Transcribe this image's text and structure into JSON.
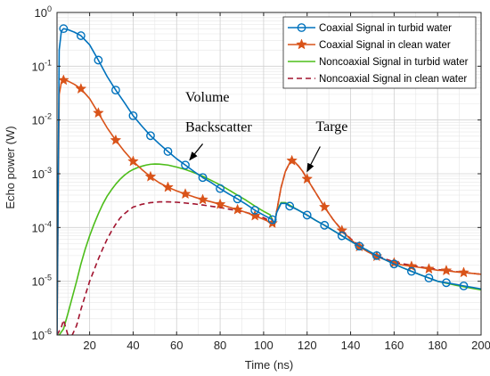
{
  "chart_data": {
    "type": "line",
    "title": "",
    "xlabel": "Time (ns)",
    "ylabel": "Echo power (W)",
    "xlim": [
      5,
      200
    ],
    "ylim": [
      1e-06,
      1
    ],
    "yscale": "log",
    "grid": true,
    "legend_position": "top-right",
    "x_ticks": [
      20,
      40,
      60,
      80,
      100,
      120,
      140,
      160,
      180,
      200
    ],
    "y_ticks": [
      {
        "value": 1e-06,
        "base": "10",
        "exp": "-6"
      },
      {
        "value": 1e-05,
        "base": "10",
        "exp": "-5"
      },
      {
        "value": 0.0001,
        "base": "10",
        "exp": "-4"
      },
      {
        "value": 0.001,
        "base": "10",
        "exp": "-3"
      },
      {
        "value": 0.01,
        "base": "10",
        "exp": "-2"
      },
      {
        "value": 0.1,
        "base": "10",
        "exp": "-1"
      },
      {
        "value": 1,
        "base": "10",
        "exp": "0"
      }
    ],
    "series": [
      {
        "name": "Coaxial Signal in turbid water",
        "color": "#0072bd",
        "line_style": "solid",
        "marker": "circle",
        "points": [
          [
            5,
            1e-06
          ],
          [
            6,
            0.2
          ],
          [
            7,
            0.45
          ],
          [
            8,
            0.5
          ],
          [
            10,
            0.48
          ],
          [
            13,
            0.43
          ],
          [
            16,
            0.37
          ],
          [
            20,
            0.25
          ],
          [
            24,
            0.13
          ],
          [
            28,
            0.065
          ],
          [
            32,
            0.036
          ],
          [
            36,
            0.021
          ],
          [
            40,
            0.012
          ],
          [
            44,
            0.0077
          ],
          [
            48,
            0.0051
          ],
          [
            52,
            0.0036
          ],
          [
            56,
            0.0026
          ],
          [
            60,
            0.0019
          ],
          [
            64,
            0.00145
          ],
          [
            68,
            0.0011
          ],
          [
            72,
            0.00085
          ],
          [
            76,
            0.00068
          ],
          [
            80,
            0.00053
          ],
          [
            84,
            0.00042
          ],
          [
            88,
            0.00034
          ],
          [
            92,
            0.00027
          ],
          [
            96,
            0.00021
          ],
          [
            100,
            0.00017
          ],
          [
            104,
            0.00014
          ],
          [
            105,
            0.00012
          ],
          [
            106,
            0.00019
          ],
          [
            108,
            0.00028
          ],
          [
            110,
            0.00028
          ],
          [
            112,
            0.00025
          ],
          [
            116,
            0.00021
          ],
          [
            120,
            0.00017
          ],
          [
            124,
            0.000135
          ],
          [
            128,
            0.00011
          ],
          [
            132,
            8.8e-05
          ],
          [
            136,
            7e-05
          ],
          [
            140,
            5.6e-05
          ],
          [
            144,
            4.5e-05
          ],
          [
            148,
            3.7e-05
          ],
          [
            152,
            3e-05
          ],
          [
            156,
            2.5e-05
          ],
          [
            160,
            2.1e-05
          ],
          [
            164,
            1.78e-05
          ],
          [
            168,
            1.53e-05
          ],
          [
            172,
            1.32e-05
          ],
          [
            176,
            1.15e-05
          ],
          [
            180,
            1e-05
          ],
          [
            184,
            9.4e-06
          ],
          [
            188,
            8.8e-06
          ],
          [
            192,
            8.2e-06
          ],
          [
            196,
            7.7e-06
          ],
          [
            200,
            7.2e-06
          ]
        ],
        "marker_x": [
          8,
          16,
          24,
          32,
          40,
          48,
          56,
          64,
          72,
          80,
          88,
          96,
          104,
          112,
          120,
          128,
          136,
          144,
          152,
          160,
          168,
          176,
          184,
          192
        ]
      },
      {
        "name": "Coaxial Signal in clean water",
        "color": "#d95319",
        "line_style": "solid",
        "marker": "star",
        "points": [
          [
            5,
            1e-06
          ],
          [
            6,
            0.03
          ],
          [
            7,
            0.05
          ],
          [
            8,
            0.055
          ],
          [
            10,
            0.053
          ],
          [
            13,
            0.046
          ],
          [
            16,
            0.038
          ],
          [
            20,
            0.025
          ],
          [
            24,
            0.0135
          ],
          [
            28,
            0.0072
          ],
          [
            32,
            0.0042
          ],
          [
            36,
            0.0026
          ],
          [
            40,
            0.0017
          ],
          [
            44,
            0.0012
          ],
          [
            48,
            0.00088
          ],
          [
            52,
            0.00068
          ],
          [
            56,
            0.00056
          ],
          [
            60,
            0.00048
          ],
          [
            64,
            0.00042
          ],
          [
            68,
            0.00037
          ],
          [
            72,
            0.00033
          ],
          [
            76,
            0.0003
          ],
          [
            80,
            0.00027
          ],
          [
            84,
            0.00024
          ],
          [
            88,
            0.000215
          ],
          [
            92,
            0.00019
          ],
          [
            96,
            0.000165
          ],
          [
            100,
            0.000142
          ],
          [
            104,
            0.00012
          ],
          [
            105,
            0.000105
          ],
          [
            106,
            0.0002
          ],
          [
            108,
            0.00055
          ],
          [
            110,
            0.0011
          ],
          [
            112,
            0.0016
          ],
          [
            113,
            0.00175
          ],
          [
            114,
            0.0017
          ],
          [
            116,
            0.0014
          ],
          [
            118,
            0.0011
          ],
          [
            120,
            0.0008
          ],
          [
            124,
            0.00044
          ],
          [
            128,
            0.00024
          ],
          [
            132,
            0.00014
          ],
          [
            136,
            8.8e-05
          ],
          [
            140,
            6e-05
          ],
          [
            144,
            4.4e-05
          ],
          [
            148,
            3.5e-05
          ],
          [
            152,
            2.9e-05
          ],
          [
            156,
            2.5e-05
          ],
          [
            160,
            2.2e-05
          ],
          [
            164,
            2e-05
          ],
          [
            168,
            1.9e-05
          ],
          [
            172,
            1.8e-05
          ],
          [
            176,
            1.7e-05
          ],
          [
            180,
            1.6e-05
          ],
          [
            184,
            1.58e-05
          ],
          [
            188,
            1.5e-05
          ],
          [
            192,
            1.45e-05
          ],
          [
            196,
            1.4e-05
          ],
          [
            200,
            1.35e-05
          ]
        ],
        "marker_x": [
          8,
          16,
          24,
          32,
          40,
          48,
          56,
          64,
          72,
          80,
          88,
          96,
          104,
          113,
          120,
          128,
          136,
          144,
          152,
          160,
          168,
          176,
          184,
          192
        ]
      },
      {
        "name": "Noncoaxial Signal in turbid water",
        "color": "#4dbd1a",
        "line_style": "solid",
        "marker": "none",
        "points": [
          [
            5,
            1e-06
          ],
          [
            6,
            1e-06
          ],
          [
            8,
            1.3e-06
          ],
          [
            10,
            2.5e-06
          ],
          [
            12,
            5e-06
          ],
          [
            14,
            1e-05
          ],
          [
            16,
            2.1e-05
          ],
          [
            18,
            4e-05
          ],
          [
            20,
            7e-05
          ],
          [
            22,
            0.000115
          ],
          [
            24,
            0.00018
          ],
          [
            26,
            0.00027
          ],
          [
            28,
            0.00038
          ],
          [
            30,
            0.0005
          ],
          [
            32,
            0.00064
          ],
          [
            34,
            0.00079
          ],
          [
            36,
            0.00094
          ],
          [
            38,
            0.00108
          ],
          [
            40,
            0.0012
          ],
          [
            42,
            0.0013
          ],
          [
            44,
            0.00138
          ],
          [
            46,
            0.00145
          ],
          [
            48,
            0.0015
          ],
          [
            50,
            0.00152
          ],
          [
            52,
            0.00151
          ],
          [
            56,
            0.00145
          ],
          [
            60,
            0.00133
          ],
          [
            64,
            0.0012
          ],
          [
            68,
            0.00105
          ],
          [
            72,
            0.0009
          ],
          [
            76,
            0.00075
          ],
          [
            80,
            0.00062
          ],
          [
            84,
            0.0005
          ],
          [
            88,
            0.0004
          ],
          [
            92,
            0.00032
          ],
          [
            96,
            0.00025
          ],
          [
            100,
            0.0002
          ],
          [
            103,
            0.000172
          ],
          [
            105,
            0.000115
          ],
          [
            106,
            0.0002
          ],
          [
            108,
            0.00029
          ],
          [
            110,
            0.00029
          ],
          [
            112,
            0.00026
          ],
          [
            116,
            0.00021
          ],
          [
            120,
            0.00017
          ],
          [
            124,
            0.000135
          ],
          [
            128,
            0.00011
          ],
          [
            132,
            8.8e-05
          ],
          [
            136,
            7e-05
          ],
          [
            140,
            5.6e-05
          ],
          [
            144,
            4.5e-05
          ],
          [
            148,
            3.7e-05
          ],
          [
            152,
            3e-05
          ],
          [
            156,
            2.5e-05
          ],
          [
            160,
            2.1e-05
          ],
          [
            164,
            1.78e-05
          ],
          [
            168,
            1.53e-05
          ],
          [
            172,
            1.32e-05
          ],
          [
            176,
            1.15e-05
          ],
          [
            180,
            1e-05
          ],
          [
            184,
            9.2e-06
          ],
          [
            188,
            8.5e-06
          ],
          [
            192,
            7.9e-06
          ],
          [
            196,
            7.4e-06
          ],
          [
            200,
            6.9e-06
          ]
        ]
      },
      {
        "name": "Noncoaxial Signal in clean water",
        "color": "#a2142f",
        "line_style": "dashed",
        "marker": "none",
        "points": [
          [
            5,
            1e-06
          ],
          [
            7,
            1.4e-06
          ],
          [
            8,
            1.9e-06
          ],
          [
            10,
            1e-06
          ],
          [
            12,
            1e-06
          ],
          [
            14,
            1.5e-06
          ],
          [
            16,
            3e-06
          ],
          [
            18,
            5.5e-06
          ],
          [
            20,
            1e-05
          ],
          [
            22,
            1.6e-05
          ],
          [
            24,
            2.6e-05
          ],
          [
            26,
            4e-05
          ],
          [
            28,
            6e-05
          ],
          [
            30,
            8.5e-05
          ],
          [
            32,
            0.000115
          ],
          [
            34,
            0.00015
          ],
          [
            36,
            0.00018
          ],
          [
            38,
            0.00021
          ],
          [
            40,
            0.00024
          ],
          [
            44,
            0.00027
          ],
          [
            48,
            0.00029
          ],
          [
            52,
            0.0003
          ],
          [
            56,
            0.0003
          ],
          [
            60,
            0.000295
          ],
          [
            64,
            0.000285
          ],
          [
            68,
            0.000275
          ],
          [
            72,
            0.000262
          ],
          [
            76,
            0.000248
          ],
          [
            80,
            0.000235
          ],
          [
            84,
            0.00022
          ],
          [
            88,
            0.000205
          ],
          [
            92,
            0.00019
          ],
          [
            96,
            0.000172
          ],
          [
            100,
            0.000152
          ],
          [
            104,
            0.000125
          ],
          [
            105,
            0.000108
          ],
          [
            106,
            0.0002
          ],
          [
            108,
            0.00055
          ],
          [
            110,
            0.0011
          ],
          [
            112,
            0.0016
          ],
          [
            113,
            0.00172
          ],
          [
            114,
            0.00168
          ],
          [
            116,
            0.0014
          ],
          [
            118,
            0.0011
          ],
          [
            120,
            0.0008
          ],
          [
            124,
            0.00044
          ],
          [
            128,
            0.00024
          ],
          [
            132,
            0.00014
          ],
          [
            136,
            9e-05
          ],
          [
            140,
            6.2e-05
          ],
          [
            144,
            4.6e-05
          ],
          [
            148,
            3.6e-05
          ],
          [
            152,
            3e-05
          ],
          [
            156,
            2.6e-05
          ],
          [
            160,
            2.3e-05
          ],
          [
            164,
            2.1e-05
          ],
          [
            168,
            2e-05
          ],
          [
            172,
            1.85e-05
          ],
          [
            176,
            1.75e-05
          ],
          [
            180,
            1.65e-05
          ],
          [
            184,
            1.6e-05
          ],
          [
            188,
            1.52e-05
          ],
          [
            192,
            1.46e-05
          ],
          [
            196,
            1.4e-05
          ],
          [
            200,
            1.35e-05
          ]
        ]
      }
    ],
    "annotations": [
      {
        "text": "Volume",
        "x": 64,
        "y": 0.022
      },
      {
        "text": "Backscatter",
        "x": 64,
        "y": 0.0061,
        "arrow_to": [
          66,
          0.0018
        ],
        "arrow_from": [
          72,
          0.0036
        ]
      },
      {
        "text": "Targe",
        "x": 124,
        "y": 0.0062,
        "arrow_to": [
          120,
          0.0011
        ],
        "arrow_from": [
          126,
          0.0032
        ]
      }
    ]
  }
}
